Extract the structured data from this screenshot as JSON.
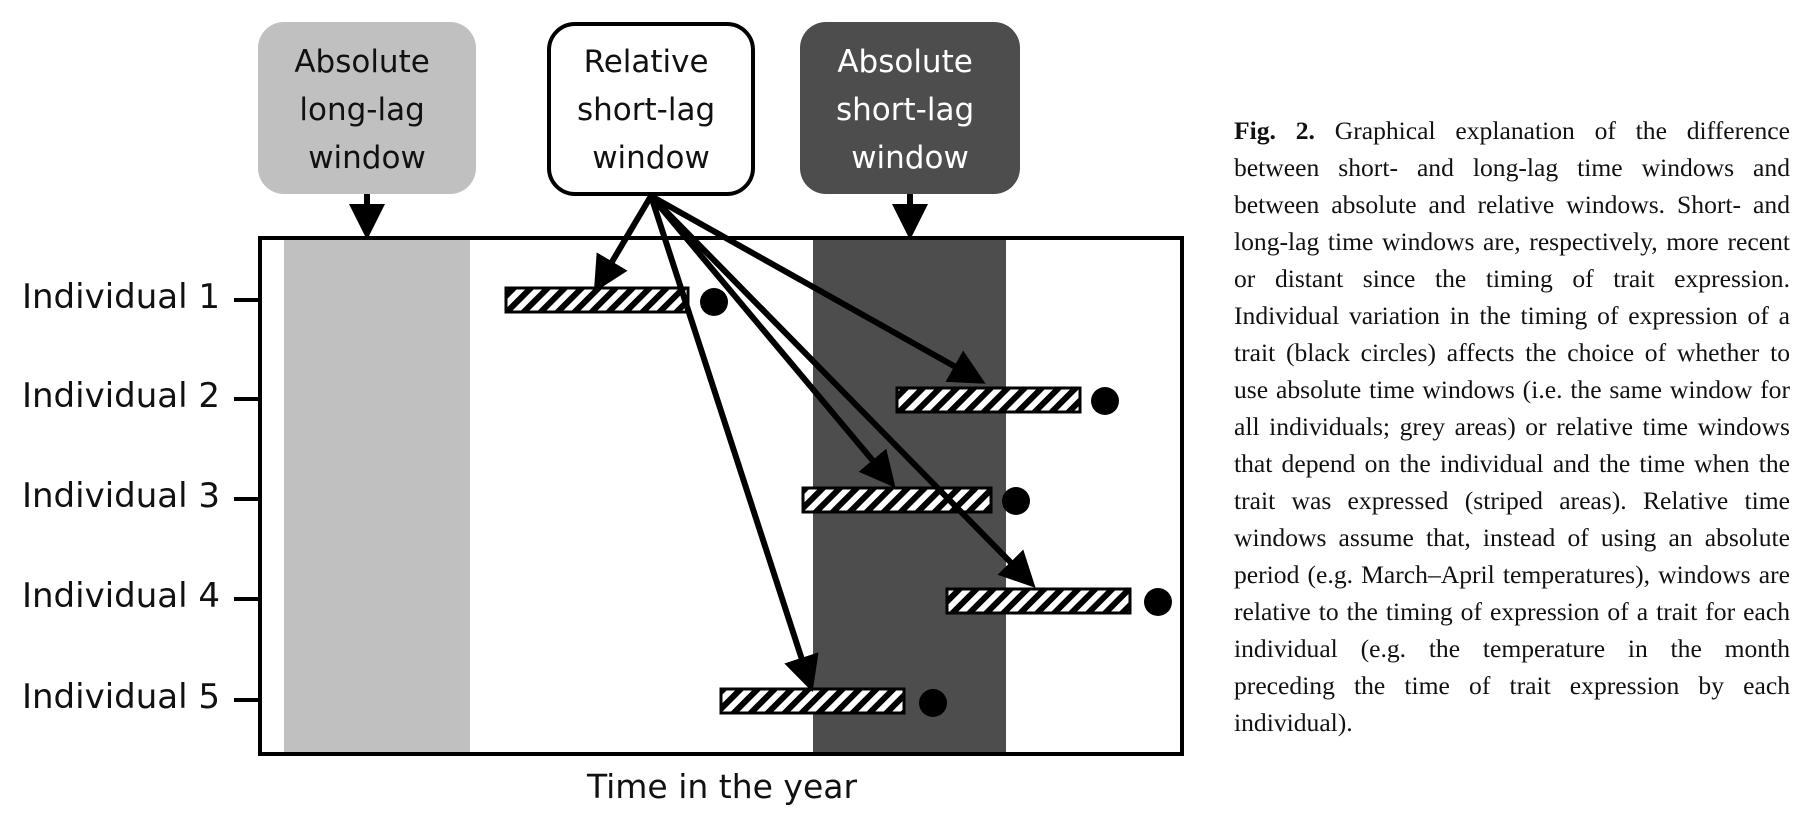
{
  "boxes": {
    "absolute_long_lag": {
      "lines": [
        "Absolute",
        "long-lag",
        "window"
      ],
      "fill": "#c0c0c0",
      "text_color": "#111111"
    },
    "relative_short_lag": {
      "lines": [
        "Relative",
        "short-lag",
        "window"
      ],
      "fill": "#ffffff",
      "text_color": "#111111"
    },
    "absolute_short_lag": {
      "lines": [
        "Absolute",
        "short-lag",
        "window"
      ],
      "fill": "#4d4d4d",
      "text_color": "#ffffff"
    }
  },
  "individuals": [
    {
      "label": "Individual 1"
    },
    {
      "label": "Individual 2"
    },
    {
      "label": "Individual 3"
    },
    {
      "label": "Individual 4"
    },
    {
      "label": "Individual 5"
    }
  ],
  "x_axis_label": "Time in the year",
  "colors": {
    "light_grey": "#c0c0c0",
    "dark_grey": "#4d4d4d",
    "ink": "#000000"
  },
  "caption": {
    "fig_label": "Fig. 2.",
    "text": "Graphical explanation of the difference between short- and long-lag time windows and between absolute and relative windows. Short- and long-lag time windows are, respectively, more recent or distant since the timing of trait expression. Individual variation in the timing of expression of a trait (black circles) affects the choice of whether to use absolute time windows (i.e. the same window for all individuals; grey areas) or relative time windows that depend on the individual and the time when the trait was expressed (striped areas). Relative time windows assume that, instead of using an absolute period (e.g. March–April temperatures), windows are relative to the timing of expression of a trait for each individual (e.g. the temperature in the month preceding the time of trait expression by each individual)."
  }
}
